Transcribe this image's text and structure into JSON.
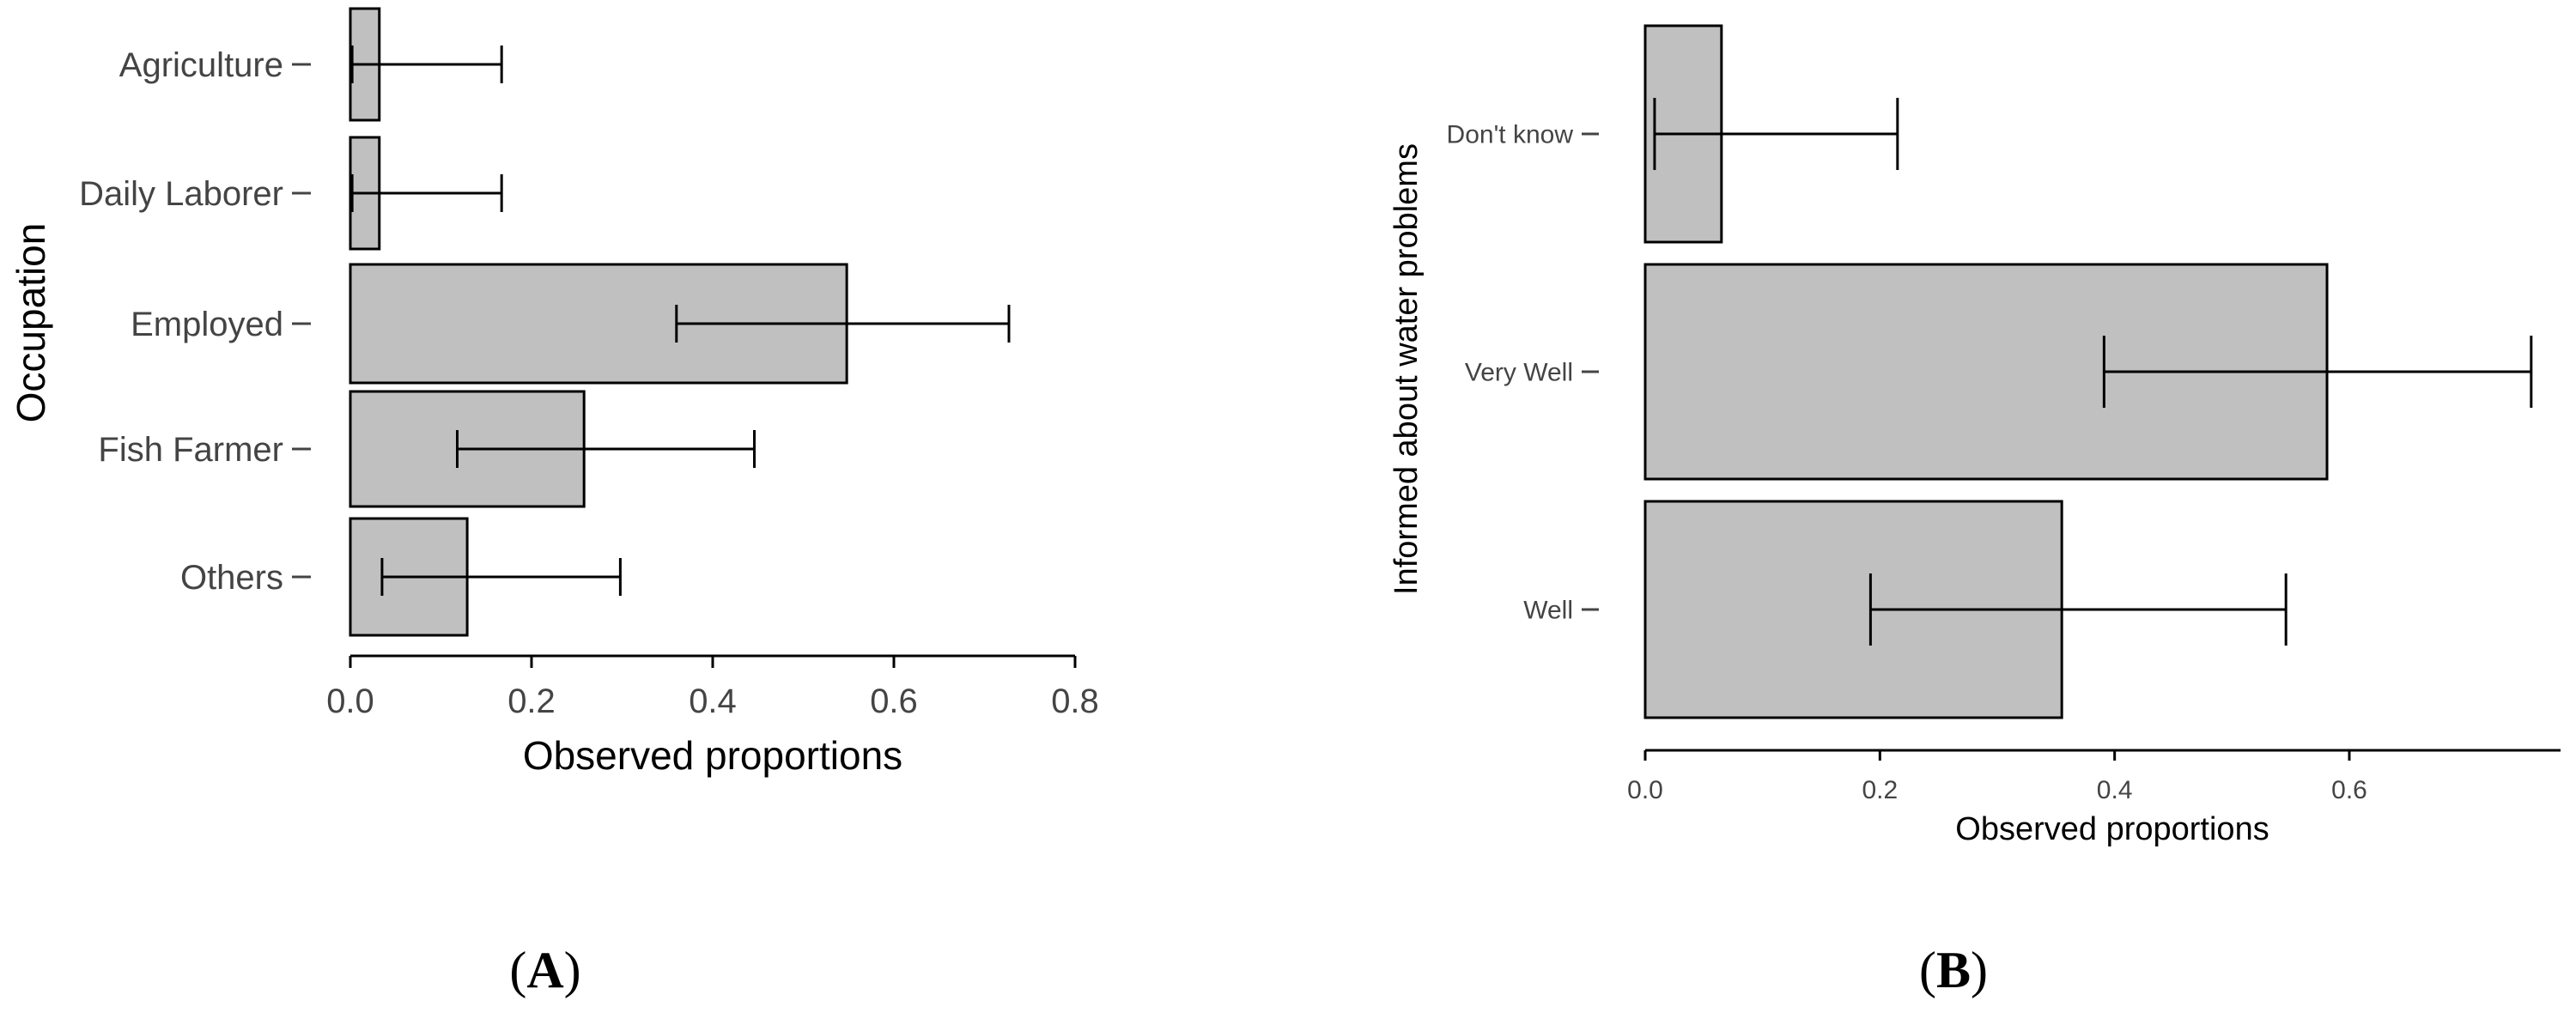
{
  "colors": {
    "bar_fill": "#c0c0c0",
    "bar_stroke": "#000000",
    "text": "#444444",
    "error_bar": "#000000"
  },
  "chart_data": [
    {
      "type": "bar",
      "orientation": "horizontal",
      "panel_label": {
        "open": "(",
        "letter": "A",
        "close": ")"
      },
      "categories": [
        "Agriculture",
        "Daily Laborer",
        "Employed",
        "Fish Farmer",
        "Others"
      ],
      "values": [
        0.032,
        0.032,
        0.548,
        0.258,
        0.129
      ],
      "error_low": [
        0.002,
        0.002,
        0.36,
        0.118,
        0.035
      ],
      "error_high": [
        0.167,
        0.167,
        0.727,
        0.446,
        0.298
      ],
      "xlabel": "Observed proportions",
      "ylabel": "Occupation",
      "xlim": [
        0,
        0.8
      ],
      "xticks": [
        0,
        0.2,
        0.4,
        0.6,
        0.8
      ],
      "xtick_labels": [
        "0.0",
        "0.2",
        "0.4",
        "0.6",
        "0.8"
      ],
      "grid": false
    },
    {
      "type": "bar",
      "orientation": "horizontal",
      "panel_label": {
        "open": "(",
        "letter": "B",
        "close": ")"
      },
      "categories": [
        "Don't know",
        "Very Well",
        "Well"
      ],
      "values": [
        0.065,
        0.581,
        0.355
      ],
      "error_low": [
        0.008,
        0.391,
        0.192
      ],
      "error_high": [
        0.215,
        0.755,
        0.546
      ],
      "xlabel": "Observed proportions",
      "ylabel": "Informed about water problems",
      "xlim": [
        0,
        0.78
      ],
      "xticks": [
        0,
        0.2,
        0.4,
        0.6
      ],
      "xtick_labels": [
        "0.0",
        "0.2",
        "0.4",
        "0.6"
      ],
      "grid": false
    }
  ]
}
